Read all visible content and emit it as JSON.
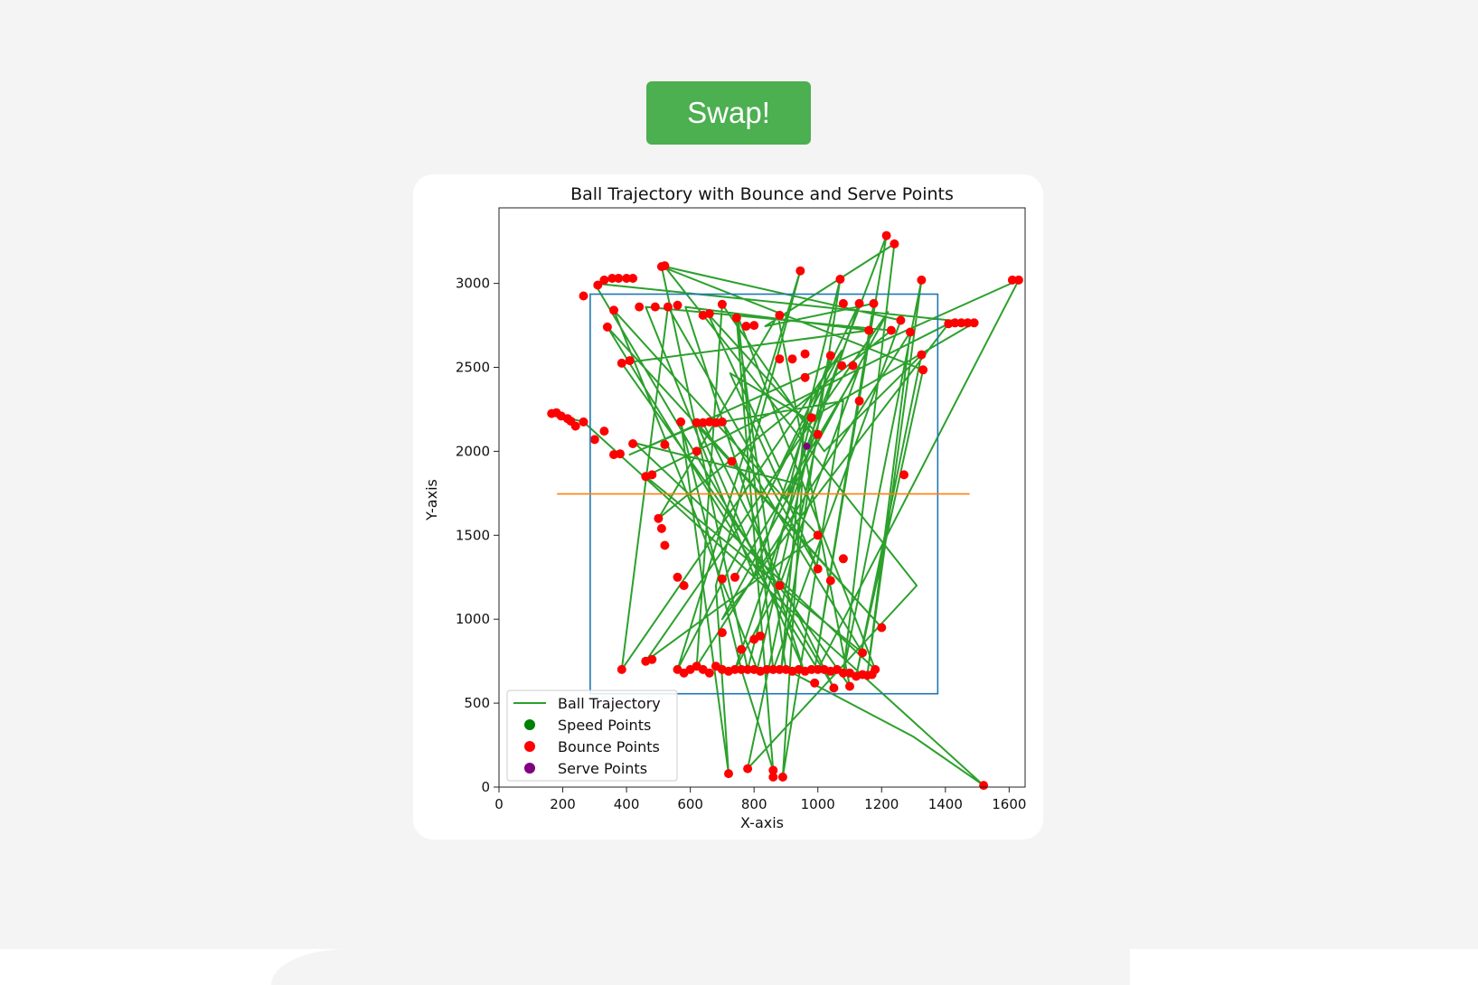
{
  "swap_button": {
    "label": "Swap!"
  },
  "colors": {
    "button": "#4caf50",
    "trajectory": "#2ca02c",
    "court": "#1f77b4",
    "net": "#ff7f0e",
    "speed": "#008000",
    "bounce": "#ff0000",
    "serve": "#800080"
  },
  "chart_data": {
    "type": "line",
    "title": "Ball Trajectory with Bounce and Serve Points",
    "xlabel": "X-axis",
    "ylabel": "Y-axis",
    "xlim": [
      0,
      1650
    ],
    "ylim": [
      0,
      3450
    ],
    "xticks": [
      0,
      200,
      400,
      600,
      800,
      1000,
      1200,
      1400,
      1600
    ],
    "yticks": [
      0,
      500,
      1000,
      1500,
      2000,
      2500,
      3000
    ],
    "legend": {
      "position": "lower-left",
      "entries": [
        "Ball Trajectory",
        "Speed Points",
        "Bounce Points",
        "Serve Points"
      ]
    },
    "court_rect": {
      "x0": 286,
      "x1": 1376,
      "y0": 556,
      "y1": 2936
    },
    "net_line": {
      "x0": 182,
      "x1": 1476,
      "y": 1746
    },
    "trajectory": [
      [
        165,
        2225
      ],
      [
        265,
        2175
      ],
      [
        1520,
        10
      ],
      [
        1300,
        300
      ],
      [
        900,
        700
      ],
      [
        745,
        2795
      ],
      [
        860,
        100
      ],
      [
        760,
        700
      ],
      [
        570,
        2175
      ],
      [
        720,
        80
      ],
      [
        680,
        1200
      ],
      [
        945,
        3075
      ],
      [
        560,
        700
      ],
      [
        1075,
        2600
      ],
      [
        385,
        700
      ],
      [
        530,
        2860
      ],
      [
        1000,
        1300
      ],
      [
        725,
        2465
      ],
      [
        960,
        2200
      ],
      [
        885,
        700
      ],
      [
        1070,
        3025
      ],
      [
        900,
        1700
      ],
      [
        1215,
        3285
      ],
      [
        990,
        700
      ],
      [
        1175,
        2880
      ],
      [
        835,
        2745
      ],
      [
        1240,
        3235
      ],
      [
        1080,
        680
      ],
      [
        1325,
        3020
      ],
      [
        1155,
        665
      ],
      [
        1290,
        2710
      ],
      [
        620,
        720
      ],
      [
        700,
        2875
      ],
      [
        1020,
        2000
      ],
      [
        1325,
        2575
      ],
      [
        1120,
        660
      ],
      [
        1330,
        2485
      ],
      [
        510,
        3100
      ],
      [
        780,
        700
      ],
      [
        980,
        2200
      ],
      [
        1490,
        2765
      ],
      [
        300,
        3000
      ],
      [
        1050,
        590
      ],
      [
        640,
        2170
      ],
      [
        410,
        1980
      ],
      [
        1630,
        3020
      ],
      [
        1000,
        700
      ],
      [
        340,
        2740
      ],
      [
        1200,
        950
      ],
      [
        620,
        2170
      ],
      [
        955,
        700
      ],
      [
        585,
        2860
      ],
      [
        1160,
        2720
      ],
      [
        385,
        2525
      ],
      [
        1100,
        600
      ],
      [
        875,
        2810
      ],
      [
        500,
        1600
      ],
      [
        1230,
        2720
      ],
      [
        460,
        2860
      ],
      [
        800,
        1260
      ],
      [
        1040,
        2570
      ],
      [
        810,
        700
      ],
      [
        360,
        2840
      ],
      [
        1000,
        1500
      ],
      [
        460,
        750
      ],
      [
        1220,
        2830
      ],
      [
        700,
        1000
      ],
      [
        1410,
        2760
      ],
      [
        460,
        1850
      ],
      [
        1140,
        800
      ],
      [
        700,
        2175
      ],
      [
        1080,
        2300
      ],
      [
        890,
        60
      ],
      [
        950,
        1800
      ],
      [
        425,
        2050
      ],
      [
        1180,
        700
      ],
      [
        750,
        2800
      ],
      [
        860,
        700
      ],
      [
        1260,
        2780
      ],
      [
        520,
        3100
      ],
      [
        1310,
        1200
      ],
      [
        780,
        110
      ],
      [
        1000,
        2100
      ],
      [
        655,
        2820
      ],
      [
        880,
        1900
      ],
      [
        1130,
        2880
      ],
      [
        740,
        700
      ],
      [
        880,
        1200
      ],
      [
        1130,
        2500
      ],
      [
        740,
        1250
      ]
    ],
    "bounce_points": [
      [
        165,
        2225
      ],
      [
        180,
        2230
      ],
      [
        195,
        2210
      ],
      [
        215,
        2195
      ],
      [
        225,
        2180
      ],
      [
        240,
        2150
      ],
      [
        265,
        2175
      ],
      [
        300,
        2070
      ],
      [
        330,
        2120
      ],
      [
        360,
        1980
      ],
      [
        380,
        1985
      ],
      [
        420,
        2045
      ],
      [
        310,
        2990
      ],
      [
        330,
        3020
      ],
      [
        355,
        3030
      ],
      [
        375,
        3030
      ],
      [
        400,
        3030
      ],
      [
        420,
        3030
      ],
      [
        265,
        2925
      ],
      [
        340,
        2740
      ],
      [
        360,
        2840
      ],
      [
        385,
        2525
      ],
      [
        410,
        2540
      ],
      [
        440,
        2860
      ],
      [
        490,
        2860
      ],
      [
        530,
        2860
      ],
      [
        510,
        3100
      ],
      [
        520,
        3105
      ],
      [
        560,
        2870
      ],
      [
        640,
        2810
      ],
      [
        660,
        2820
      ],
      [
        700,
        2875
      ],
      [
        745,
        2795
      ],
      [
        775,
        2745
      ],
      [
        800,
        2750
      ],
      [
        880,
        2810
      ],
      [
        945,
        3075
      ],
      [
        1070,
        3025
      ],
      [
        1215,
        3285
      ],
      [
        1240,
        3235
      ],
      [
        1325,
        3020
      ],
      [
        1610,
        3020
      ],
      [
        1630,
        3020
      ],
      [
        1450,
        2765
      ],
      [
        1470,
        2765
      ],
      [
        1490,
        2765
      ],
      [
        1430,
        2765
      ],
      [
        1410,
        2760
      ],
      [
        1175,
        2880
      ],
      [
        1230,
        2720
      ],
      [
        1260,
        2780
      ],
      [
        1130,
        2880
      ],
      [
        1080,
        2880
      ],
      [
        1325,
        2575
      ],
      [
        1330,
        2485
      ],
      [
        1290,
        2710
      ],
      [
        1160,
        2720
      ],
      [
        1040,
        2570
      ],
      [
        1075,
        2510
      ],
      [
        1110,
        2510
      ],
      [
        960,
        2580
      ],
      [
        960,
        2440
      ],
      [
        880,
        2550
      ],
      [
        920,
        2550
      ],
      [
        620,
        2170
      ],
      [
        640,
        2170
      ],
      [
        660,
        2175
      ],
      [
        680,
        2170
      ],
      [
        700,
        2175
      ],
      [
        570,
        2175
      ],
      [
        520,
        2040
      ],
      [
        620,
        2000
      ],
      [
        730,
        1940
      ],
      [
        460,
        1850
      ],
      [
        480,
        1860
      ],
      [
        500,
        1600
      ],
      [
        510,
        1540
      ],
      [
        520,
        1440
      ],
      [
        560,
        1250
      ],
      [
        580,
        1200
      ],
      [
        700,
        1240
      ],
      [
        740,
        1250
      ],
      [
        880,
        1200
      ],
      [
        1000,
        1300
      ],
      [
        1040,
        1230
      ],
      [
        1080,
        1360
      ],
      [
        1000,
        2100
      ],
      [
        980,
        2200
      ],
      [
        1130,
        2300
      ],
      [
        1270,
        1860
      ],
      [
        1000,
        1500
      ],
      [
        460,
        750
      ],
      [
        480,
        760
      ],
      [
        560,
        700
      ],
      [
        580,
        680
      ],
      [
        600,
        700
      ],
      [
        620,
        720
      ],
      [
        640,
        700
      ],
      [
        660,
        680
      ],
      [
        680,
        720
      ],
      [
        700,
        700
      ],
      [
        720,
        690
      ],
      [
        740,
        700
      ],
      [
        760,
        700
      ],
      [
        780,
        700
      ],
      [
        800,
        700
      ],
      [
        820,
        690
      ],
      [
        840,
        700
      ],
      [
        860,
        700
      ],
      [
        880,
        700
      ],
      [
        900,
        700
      ],
      [
        920,
        690
      ],
      [
        940,
        700
      ],
      [
        960,
        690
      ],
      [
        980,
        700
      ],
      [
        1000,
        700
      ],
      [
        1020,
        700
      ],
      [
        1040,
        690
      ],
      [
        1060,
        700
      ],
      [
        1080,
        680
      ],
      [
        1100,
        680
      ],
      [
        1120,
        660
      ],
      [
        1140,
        670
      ],
      [
        1155,
        665
      ],
      [
        1170,
        670
      ],
      [
        1180,
        700
      ],
      [
        1200,
        950
      ],
      [
        1100,
        600
      ],
      [
        1050,
        590
      ],
      [
        990,
        620
      ],
      [
        385,
        700
      ],
      [
        720,
        80
      ],
      [
        780,
        110
      ],
      [
        860,
        100
      ],
      [
        860,
        60
      ],
      [
        890,
        60
      ],
      [
        1520,
        10
      ],
      [
        800,
        880
      ],
      [
        820,
        900
      ],
      [
        760,
        820
      ],
      [
        700,
        920
      ],
      [
        1140,
        800
      ]
    ],
    "speed_points": [],
    "serve_points": [
      [
        965,
        2030
      ]
    ]
  }
}
